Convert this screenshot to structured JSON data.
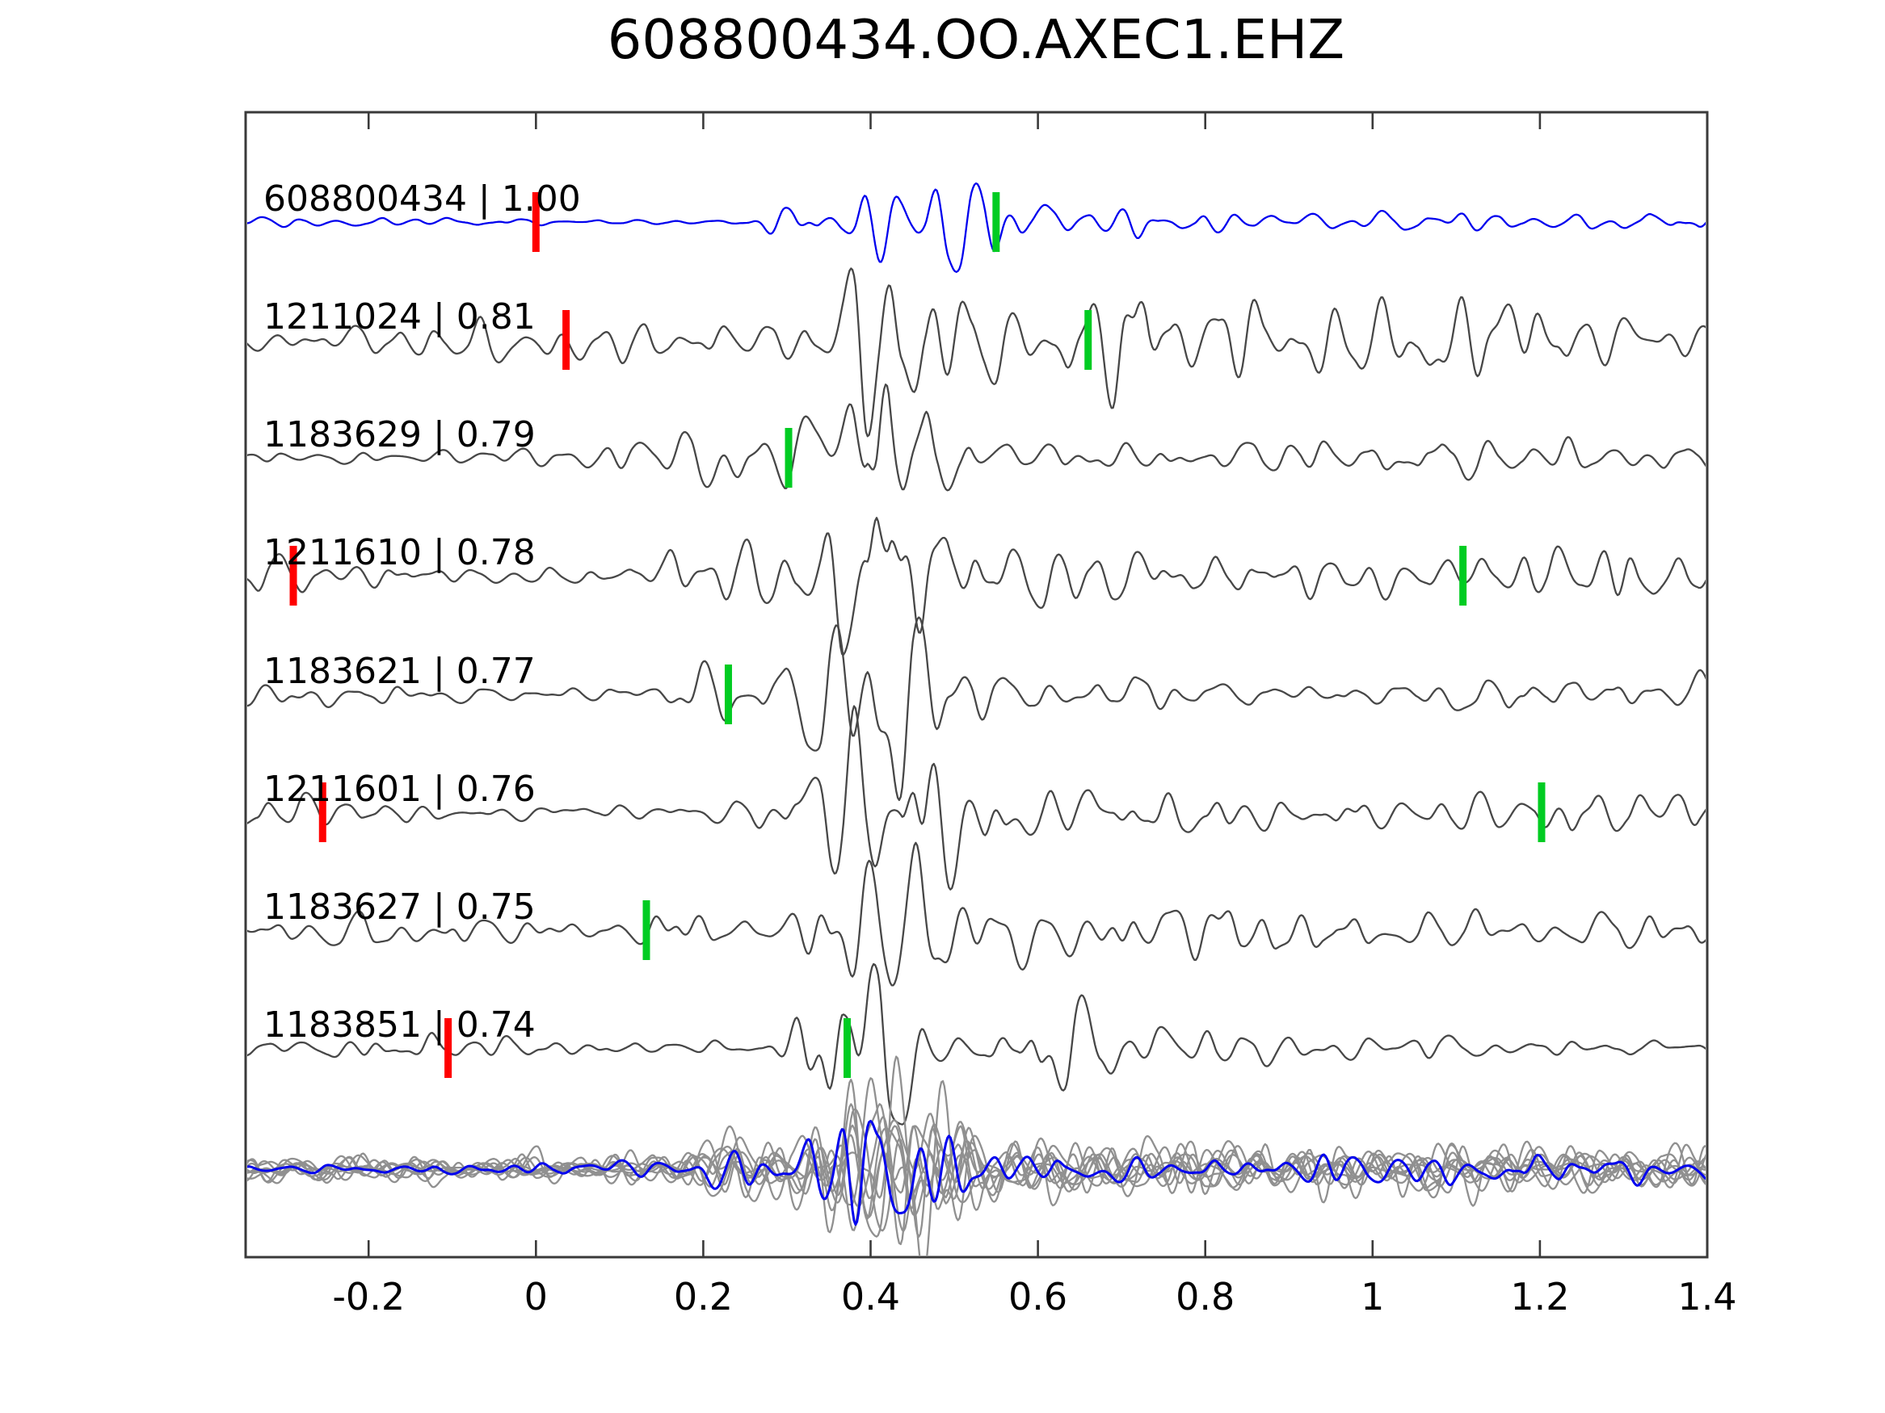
{
  "figure_title": "608800434.OO.AXEC1.EHZ",
  "colors": {
    "background": "#ffffff",
    "axis": "#3a3a3a",
    "template_trace": "#0000ee",
    "candidate_trace": "#474747",
    "stack_trace": "#909090",
    "pick_red": "#ff0000",
    "pick_green": "#00cc22",
    "text": "#000000"
  },
  "chart_data": {
    "type": "line",
    "title": "608800434.OO.AXEC1.EHZ",
    "xlabel": "",
    "ylabel": "",
    "xlim": [
      -0.347,
      1.4
    ],
    "x_ticks": [
      -0.2,
      0,
      0.2,
      0.4,
      0.6,
      0.8,
      1,
      1.2,
      1.4
    ],
    "x_tick_labels": [
      "-0.2",
      "0",
      "0.2",
      "0.4",
      "0.6",
      "0.8",
      "1",
      "1.2",
      "1.4"
    ],
    "grid": false,
    "legend": null,
    "description": "Template-matching waveform similarity plot: template trace (blue) with detected event waveforms (gray), correlation values per event, red/green phase-pick markers, and a bottom panel stacking all gray traces with the blue template overlaid.",
    "traces": [
      {
        "id": "608800434",
        "correlation": "1.00",
        "label": "608800434 | 1.00",
        "kind": "template",
        "picks": [
          {
            "color": "red",
            "t": 0.0
          },
          {
            "color": "green",
            "t": 0.55
          }
        ],
        "synth": {
          "seed": 11,
          "noise": 9,
          "packets": [
            [
              0.46,
              0.085,
              70
            ],
            [
              0.31,
              0.045,
              22
            ]
          ],
          "tail": [
            18,
            0.9
          ]
        }
      },
      {
        "id": "1211024",
        "correlation": "0.81",
        "label": "1211024 | 0.81",
        "kind": "candidate",
        "picks": [
          {
            "color": "red",
            "t": 0.036
          },
          {
            "color": "green",
            "t": 0.66
          }
        ],
        "synth": {
          "seed": 22,
          "noise": 30,
          "packets": [
            [
              0.41,
              0.085,
              88
            ],
            [
              0.72,
              0.08,
              58
            ],
            [
              1.15,
              0.12,
              25
            ]
          ],
          "tail": [
            38,
            1.3
          ]
        }
      },
      {
        "id": "1183629",
        "correlation": "0.79",
        "label": "1183629 | 0.79",
        "kind": "candidate",
        "picks": [
          {
            "color": "green",
            "t": 0.302
          }
        ],
        "synth": {
          "seed": 33,
          "noise": 20,
          "packets": [
            [
              0.4,
              0.075,
              140
            ],
            [
              0.21,
              0.055,
              30
            ]
          ],
          "tail": [
            16,
            0.7
          ]
        }
      },
      {
        "id": "1211610",
        "correlation": "0.78",
        "label": "1211610 | 0.78",
        "kind": "candidate",
        "picks": [
          {
            "color": "red",
            "t": -0.29
          },
          {
            "color": "green",
            "t": 1.108
          }
        ],
        "synth": {
          "seed": 44,
          "noise": 32,
          "packets": [
            [
              0.42,
              0.075,
              122
            ],
            [
              0.2,
              0.06,
              35
            ]
          ],
          "tail": [
            26,
            1.0
          ]
        }
      },
      {
        "id": "1183621",
        "correlation": "0.77",
        "label": "1183621 | 0.77",
        "kind": "candidate",
        "picks": [
          {
            "color": "green",
            "t": 0.23
          }
        ],
        "synth": {
          "seed": 55,
          "noise": 23,
          "packets": [
            [
              0.4,
              0.075,
              138
            ],
            [
              0.23,
              0.05,
              32
            ]
          ],
          "tail": [
            15,
            0.8
          ]
        }
      },
      {
        "id": "1211601",
        "correlation": "0.76",
        "label": "1211601 | 0.76",
        "kind": "candidate",
        "picks": [
          {
            "color": "red",
            "t": -0.255
          },
          {
            "color": "green",
            "t": 1.202
          }
        ],
        "synth": {
          "seed": 66,
          "noise": 26,
          "packets": [
            [
              0.42,
              0.08,
              126
            ]
          ],
          "tail": [
            24,
            1.1
          ]
        }
      },
      {
        "id": "1183627",
        "correlation": "0.75",
        "label": "1183627 | 0.75",
        "kind": "candidate",
        "picks": [
          {
            "color": "green",
            "t": 0.132
          }
        ],
        "synth": {
          "seed": 77,
          "noise": 23,
          "packets": [
            [
              0.42,
              0.085,
              132
            ],
            [
              0.18,
              0.05,
              28
            ]
          ],
          "tail": [
            26,
            1.2
          ]
        }
      },
      {
        "id": "1183851",
        "correlation": "0.74",
        "label": "1183851 | 0.74",
        "kind": "candidate",
        "picks": [
          {
            "color": "red",
            "t": -0.105
          },
          {
            "color": "green",
            "t": 0.372
          }
        ],
        "synth": {
          "seed": 88,
          "noise": 16,
          "packets": [
            [
              0.4,
              0.07,
              138
            ],
            [
              0.63,
              0.055,
              55
            ]
          ],
          "tail": [
            14,
            0.8
          ]
        }
      }
    ],
    "stack": {
      "gray_count": 9,
      "has_template_overlay": true,
      "picks": [],
      "gray_synth": {
        "seed": 140,
        "noise": 25,
        "packets": [
          [
            0.42,
            0.085,
            110
          ],
          [
            0.23,
            0.05,
            25
          ]
        ],
        "tail": [
          26,
          1.0
        ]
      },
      "template_synth": {
        "seed": 160,
        "noise": 14,
        "packets": [
          [
            0.42,
            0.08,
            90
          ],
          [
            0.23,
            0.05,
            16
          ]
        ],
        "tail": [
          18,
          1.0
        ]
      }
    }
  }
}
